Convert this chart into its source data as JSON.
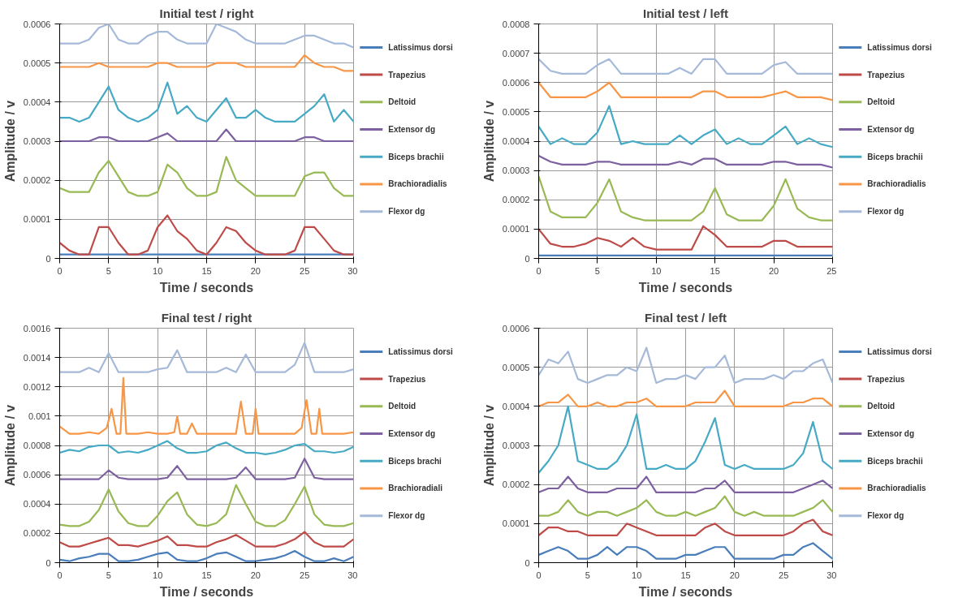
{
  "chart_data": [
    {
      "type": "line",
      "title": "Initial test / right",
      "xlabel": "Time / seconds",
      "ylabel": "Amplitude / v",
      "xlim": [
        0,
        30
      ],
      "xticks": [
        0,
        5,
        10,
        15,
        20,
        25,
        30
      ],
      "ylim": [
        0,
        0.0006
      ],
      "yticks": [
        0,
        0.0001,
        0.0002,
        0.0003,
        0.0004,
        0.0005,
        0.0006
      ],
      "grid": true,
      "legend": "right",
      "marker": "none",
      "line_style": "solid",
      "x": [
        0,
        1,
        2,
        3,
        4,
        5,
        6,
        7,
        8,
        9,
        10,
        11,
        12,
        13,
        14,
        15,
        16,
        17,
        18,
        19,
        20,
        21,
        22,
        23,
        24,
        25,
        26,
        27,
        28,
        29,
        30
      ],
      "series": [
        {
          "name": "Latissimus dorsi",
          "color": "#4a7ebb",
          "values": [
            1e-05,
            1e-05,
            1e-05,
            1e-05,
            1e-05,
            1e-05,
            1e-05,
            1e-05,
            1e-05,
            1e-05,
            1e-05,
            1e-05,
            1e-05,
            1e-05,
            1e-05,
            1e-05,
            1e-05,
            1e-05,
            1e-05,
            1e-05,
            1e-05,
            1e-05,
            1e-05,
            1e-05,
            1e-05,
            1e-05,
            1e-05,
            1e-05,
            1e-05,
            1e-05,
            1e-05
          ]
        },
        {
          "name": "Trapezius",
          "color": "#be4b48",
          "values": [
            4e-05,
            2e-05,
            1e-05,
            1e-05,
            8e-05,
            8e-05,
            4e-05,
            1e-05,
            1e-05,
            2e-05,
            8e-05,
            0.00011,
            7e-05,
            5e-05,
            2e-05,
            1e-05,
            4e-05,
            8e-05,
            7e-05,
            4e-05,
            2e-05,
            1e-05,
            1e-05,
            1e-05,
            2e-05,
            8e-05,
            8e-05,
            5e-05,
            2e-05,
            1e-05,
            1e-05
          ]
        },
        {
          "name": "Deltoid",
          "color": "#98b954",
          "values": [
            0.00018,
            0.00017,
            0.00017,
            0.00017,
            0.00022,
            0.00025,
            0.00021,
            0.00017,
            0.00016,
            0.00016,
            0.00017,
            0.00024,
            0.00022,
            0.00018,
            0.00016,
            0.00016,
            0.00017,
            0.00026,
            0.0002,
            0.00018,
            0.00016,
            0.00016,
            0.00016,
            0.00016,
            0.00016,
            0.00021,
            0.00022,
            0.00022,
            0.00018,
            0.00016,
            0.00016
          ]
        },
        {
          "name": "Extensor dg",
          "color": "#7d60a0",
          "values": [
            0.0003,
            0.0003,
            0.0003,
            0.0003,
            0.00031,
            0.00031,
            0.0003,
            0.0003,
            0.0003,
            0.0003,
            0.00031,
            0.00032,
            0.0003,
            0.0003,
            0.0003,
            0.0003,
            0.0003,
            0.00033,
            0.0003,
            0.0003,
            0.0003,
            0.0003,
            0.0003,
            0.0003,
            0.0003,
            0.00031,
            0.00031,
            0.0003,
            0.0003,
            0.0003,
            0.0003
          ]
        },
        {
          "name": "Biceps brachii",
          "color": "#46aac5",
          "values": [
            0.00036,
            0.00036,
            0.00035,
            0.00036,
            0.0004,
            0.00044,
            0.00038,
            0.00036,
            0.00035,
            0.00036,
            0.00038,
            0.00045,
            0.00037,
            0.00039,
            0.00036,
            0.00035,
            0.00038,
            0.00041,
            0.00036,
            0.00036,
            0.00038,
            0.00036,
            0.00035,
            0.00035,
            0.00035,
            0.00037,
            0.00039,
            0.00042,
            0.00035,
            0.00038,
            0.00035
          ]
        },
        {
          "name": "Brachioradialis",
          "color": "#f79646",
          "values": [
            0.00049,
            0.00049,
            0.00049,
            0.00049,
            0.0005,
            0.00049,
            0.00049,
            0.00049,
            0.00049,
            0.00049,
            0.0005,
            0.0005,
            0.00049,
            0.00049,
            0.00049,
            0.00049,
            0.0005,
            0.0005,
            0.0005,
            0.00049,
            0.00049,
            0.00049,
            0.00049,
            0.00049,
            0.00049,
            0.00052,
            0.0005,
            0.00049,
            0.00049,
            0.00048,
            0.00048
          ]
        },
        {
          "name": "Flexor dg",
          "color": "#a5b9d9",
          "values": [
            0.00055,
            0.00055,
            0.00055,
            0.00056,
            0.00059,
            0.0006,
            0.00056,
            0.00055,
            0.00055,
            0.00057,
            0.00058,
            0.00058,
            0.00056,
            0.00055,
            0.00055,
            0.00055,
            0.0006,
            0.00059,
            0.00058,
            0.00056,
            0.00055,
            0.00055,
            0.00055,
            0.00055,
            0.00056,
            0.00057,
            0.00057,
            0.00056,
            0.00055,
            0.00055,
            0.00054
          ]
        }
      ]
    },
    {
      "type": "line",
      "title": "Initial test / left",
      "xlabel": "Time / seconds",
      "ylabel": "Amplitude / v",
      "xlim": [
        0,
        25
      ],
      "xticks": [
        0,
        5,
        10,
        15,
        20,
        25
      ],
      "ylim": [
        0,
        0.0008
      ],
      "yticks": [
        0,
        0.0001,
        0.0002,
        0.0003,
        0.0004,
        0.0005,
        0.0006,
        0.0007,
        0.0008
      ],
      "grid": true,
      "legend": "right",
      "marker": "none",
      "line_style": "solid",
      "x": [
        0,
        1,
        2,
        3,
        4,
        5,
        6,
        7,
        8,
        9,
        10,
        11,
        12,
        13,
        14,
        15,
        16,
        17,
        18,
        19,
        20,
        21,
        22,
        23,
        24,
        25
      ],
      "series": [
        {
          "name": "Latissimus dorsi",
          "color": "#4a7ebb",
          "values": [
            1e-05,
            1e-05,
            1e-05,
            1e-05,
            1e-05,
            1e-05,
            1e-05,
            1e-05,
            1e-05,
            1e-05,
            1e-05,
            1e-05,
            1e-05,
            1e-05,
            1e-05,
            1e-05,
            1e-05,
            1e-05,
            1e-05,
            1e-05,
            1e-05,
            1e-05,
            1e-05,
            1e-05,
            1e-05,
            1e-05
          ]
        },
        {
          "name": "Trapezius",
          "color": "#be4b48",
          "values": [
            0.0001,
            5e-05,
            4e-05,
            4e-05,
            5e-05,
            7e-05,
            6e-05,
            4e-05,
            7e-05,
            4e-05,
            3e-05,
            3e-05,
            3e-05,
            3e-05,
            0.00011,
            8e-05,
            4e-05,
            4e-05,
            4e-05,
            4e-05,
            6e-05,
            6e-05,
            4e-05,
            4e-05,
            4e-05,
            4e-05
          ]
        },
        {
          "name": "Deltoid",
          "color": "#98b954",
          "values": [
            0.00028,
            0.00016,
            0.00014,
            0.00014,
            0.00014,
            0.00019,
            0.00027,
            0.00016,
            0.00014,
            0.00013,
            0.00013,
            0.00013,
            0.00013,
            0.00013,
            0.00016,
            0.00024,
            0.00015,
            0.00013,
            0.00013,
            0.00013,
            0.00018,
            0.00027,
            0.00017,
            0.00014,
            0.00013,
            0.00013
          ]
        },
        {
          "name": "Extensor dg",
          "color": "#7d60a0",
          "values": [
            0.00035,
            0.00033,
            0.00032,
            0.00032,
            0.00032,
            0.00033,
            0.00033,
            0.00032,
            0.00032,
            0.00032,
            0.00032,
            0.00032,
            0.00033,
            0.00032,
            0.00034,
            0.00034,
            0.00032,
            0.00032,
            0.00032,
            0.00032,
            0.00033,
            0.00033,
            0.00032,
            0.00032,
            0.00032,
            0.00031
          ]
        },
        {
          "name": "Biceps brachii",
          "color": "#46aac5",
          "values": [
            0.00045,
            0.00039,
            0.00041,
            0.00039,
            0.00039,
            0.00043,
            0.00052,
            0.00039,
            0.0004,
            0.00039,
            0.00039,
            0.00039,
            0.00042,
            0.00039,
            0.00042,
            0.00044,
            0.00039,
            0.00041,
            0.00039,
            0.00039,
            0.00042,
            0.00045,
            0.00039,
            0.00041,
            0.00039,
            0.00038
          ]
        },
        {
          "name": "Brachioradialis",
          "color": "#f79646",
          "values": [
            0.0006,
            0.00055,
            0.00055,
            0.00055,
            0.00055,
            0.00057,
            0.0006,
            0.00055,
            0.00055,
            0.00055,
            0.00055,
            0.00055,
            0.00055,
            0.00055,
            0.00057,
            0.00057,
            0.00055,
            0.00055,
            0.00055,
            0.00055,
            0.00056,
            0.00057,
            0.00055,
            0.00055,
            0.00055,
            0.00054
          ]
        },
        {
          "name": "Flexor dg",
          "color": "#a5b9d9",
          "values": [
            0.00068,
            0.00064,
            0.00063,
            0.00063,
            0.00063,
            0.00066,
            0.00068,
            0.00063,
            0.00063,
            0.00063,
            0.00063,
            0.00063,
            0.00065,
            0.00063,
            0.00068,
            0.00068,
            0.00063,
            0.00063,
            0.00063,
            0.00063,
            0.00066,
            0.00067,
            0.00063,
            0.00063,
            0.00063,
            0.00063
          ]
        }
      ]
    },
    {
      "type": "line",
      "title": "Final test / right",
      "xlabel": "Time / seconds",
      "ylabel": "Amplitude / v",
      "xlim": [
        0,
        30
      ],
      "xticks": [
        0,
        5,
        10,
        15,
        20,
        25,
        30
      ],
      "ylim": [
        0,
        0.0016
      ],
      "yticks": [
        0,
        0.0002,
        0.0004,
        0.0006,
        0.0008,
        0.001,
        0.0012,
        0.0014,
        0.0016
      ],
      "grid": true,
      "legend": "right",
      "marker": "none",
      "line_style": "solid",
      "x": [
        0,
        1,
        2,
        3,
        4,
        5,
        6,
        7,
        8,
        9,
        10,
        11,
        12,
        13,
        14,
        15,
        16,
        17,
        18,
        19,
        20,
        21,
        22,
        23,
        24,
        25,
        26,
        27,
        28,
        29,
        30
      ],
      "series": [
        {
          "name": "Latissimus dorsi",
          "color": "#4a7ebb",
          "values": [
            2e-05,
            1e-05,
            3e-05,
            4e-05,
            6e-05,
            6e-05,
            1e-05,
            1e-05,
            2e-05,
            4e-05,
            6e-05,
            7e-05,
            2e-05,
            1e-05,
            1e-05,
            3e-05,
            6e-05,
            7e-05,
            4e-05,
            1e-05,
            1e-05,
            2e-05,
            3e-05,
            5e-05,
            8e-05,
            4e-05,
            1e-05,
            1e-05,
            3e-05,
            1e-05,
            4e-05
          ]
        },
        {
          "name": "Trapezius",
          "color": "#be4b48",
          "values": [
            0.00014,
            0.00011,
            0.00011,
            0.00013,
            0.00015,
            0.00017,
            0.00012,
            0.00012,
            0.00011,
            0.00013,
            0.00015,
            0.00018,
            0.00012,
            0.00012,
            0.00011,
            0.00011,
            0.00014,
            0.00016,
            0.00019,
            0.00015,
            0.00011,
            0.00011,
            0.00011,
            0.00013,
            0.00016,
            0.00021,
            0.00014,
            0.00011,
            0.00011,
            0.00011,
            0.00016
          ]
        },
        {
          "name": "Deltoid",
          "color": "#98b954",
          "values": [
            0.00026,
            0.00025,
            0.00025,
            0.00028,
            0.00036,
            0.0005,
            0.00035,
            0.00027,
            0.00025,
            0.00025,
            0.00032,
            0.00042,
            0.00048,
            0.00033,
            0.00026,
            0.00025,
            0.00027,
            0.00033,
            0.00053,
            0.0004,
            0.00028,
            0.00025,
            0.00025,
            0.00029,
            0.0004,
            0.00052,
            0.00033,
            0.00026,
            0.00025,
            0.00025,
            0.00027
          ]
        },
        {
          "name": "Extensor dg",
          "color": "#7d60a0",
          "values": [
            0.00057,
            0.00057,
            0.00057,
            0.00057,
            0.00057,
            0.00063,
            0.00058,
            0.00057,
            0.00057,
            0.00057,
            0.00057,
            0.00058,
            0.00066,
            0.00057,
            0.00057,
            0.00057,
            0.00057,
            0.00057,
            0.00058,
            0.00065,
            0.00057,
            0.00057,
            0.00057,
            0.00057,
            0.00058,
            0.00071,
            0.00058,
            0.00057,
            0.00057,
            0.00057,
            0.00057
          ]
        },
        {
          "name": "Biceps brachi",
          "color": "#46aac5",
          "values": [
            0.00075,
            0.00077,
            0.00076,
            0.00079,
            0.0008,
            0.0008,
            0.00075,
            0.00076,
            0.00075,
            0.00077,
            0.0008,
            0.00083,
            0.00078,
            0.00075,
            0.00075,
            0.00076,
            0.0008,
            0.00082,
            0.00078,
            0.00075,
            0.00075,
            0.00074,
            0.00075,
            0.00077,
            0.0008,
            0.00081,
            0.00076,
            0.00076,
            0.00075,
            0.00076,
            0.00079
          ]
        },
        {
          "name": "Brachioradiali",
          "color": "#f79646",
          "x": [
            0,
            1,
            2,
            3,
            4,
            4.8,
            5.3,
            5.8,
            6.2,
            6.5,
            6.8,
            7,
            8,
            9,
            10,
            11,
            11.7,
            12,
            12.3,
            13,
            13.5,
            14,
            15,
            16,
            17,
            18,
            18.5,
            19,
            19.7,
            20,
            20.3,
            21,
            22,
            23,
            24,
            24.7,
            25.2,
            25.7,
            26.2,
            26.5,
            26.8,
            27,
            28,
            29,
            30
          ],
          "values": [
            0.00093,
            0.00088,
            0.00088,
            0.00089,
            0.00088,
            0.00092,
            0.00105,
            0.00088,
            0.00088,
            0.00126,
            0.00088,
            0.00088,
            0.00088,
            0.00089,
            0.00088,
            0.00088,
            0.00089,
            0.001,
            0.00088,
            0.00088,
            0.00095,
            0.00088,
            0.00088,
            0.00088,
            0.00088,
            0.00088,
            0.0011,
            0.00088,
            0.00088,
            0.00105,
            0.00088,
            0.00088,
            0.00088,
            0.00088,
            0.00088,
            0.00092,
            0.00111,
            0.00088,
            0.00088,
            0.00105,
            0.00088,
            0.00088,
            0.00088,
            0.00088,
            0.00089
          ]
        },
        {
          "name": "Flexor dg",
          "color": "#a5b9d9",
          "values": [
            0.0013,
            0.0013,
            0.0013,
            0.00133,
            0.0013,
            0.00143,
            0.0013,
            0.0013,
            0.0013,
            0.0013,
            0.00132,
            0.00133,
            0.00145,
            0.0013,
            0.0013,
            0.0013,
            0.0013,
            0.00133,
            0.0013,
            0.00142,
            0.0013,
            0.0013,
            0.0013,
            0.0013,
            0.00135,
            0.0015,
            0.0013,
            0.0013,
            0.0013,
            0.0013,
            0.00132
          ]
        }
      ]
    },
    {
      "type": "line",
      "title": "Final test / left",
      "xlabel": "Time / seconds",
      "ylabel": "Amplitude / v",
      "xlim": [
        0,
        30
      ],
      "xticks": [
        0,
        5,
        10,
        15,
        20,
        25,
        30
      ],
      "ylim": [
        0,
        0.0006
      ],
      "yticks": [
        0,
        0.0001,
        0.0002,
        0.0003,
        0.0004,
        0.0005,
        0.0006
      ],
      "grid": true,
      "legend": "right",
      "marker": "none",
      "line_style": "solid",
      "x": [
        0,
        1,
        2,
        3,
        4,
        5,
        6,
        7,
        8,
        9,
        10,
        11,
        12,
        13,
        14,
        15,
        16,
        17,
        18,
        19,
        20,
        21,
        22,
        23,
        24,
        25,
        26,
        27,
        28,
        29,
        30
      ],
      "series": [
        {
          "name": "Latissimus dorsi",
          "color": "#4a7ebb",
          "values": [
            2e-05,
            3e-05,
            4e-05,
            3e-05,
            1e-05,
            1e-05,
            2e-05,
            4e-05,
            2e-05,
            4e-05,
            4e-05,
            3e-05,
            1e-05,
            1e-05,
            1e-05,
            2e-05,
            2e-05,
            3e-05,
            4e-05,
            4e-05,
            1e-05,
            1e-05,
            1e-05,
            1e-05,
            1e-05,
            2e-05,
            2e-05,
            4e-05,
            5e-05,
            3e-05,
            1e-05
          ]
        },
        {
          "name": "Trapezius",
          "color": "#be4b48",
          "values": [
            7e-05,
            9e-05,
            9e-05,
            8e-05,
            8e-05,
            7e-05,
            7e-05,
            7e-05,
            7e-05,
            0.0001,
            9e-05,
            8e-05,
            7e-05,
            7e-05,
            7e-05,
            7e-05,
            7e-05,
            9e-05,
            0.0001,
            8e-05,
            7e-05,
            7e-05,
            7e-05,
            7e-05,
            7e-05,
            7e-05,
            8e-05,
            0.0001,
            0.00011,
            8e-05,
            7e-05
          ]
        },
        {
          "name": "Deltoid",
          "color": "#98b954",
          "values": [
            0.00012,
            0.00012,
            0.00013,
            0.00016,
            0.00013,
            0.00012,
            0.00013,
            0.00013,
            0.00012,
            0.00013,
            0.00014,
            0.00016,
            0.00013,
            0.00012,
            0.00012,
            0.00013,
            0.00012,
            0.00013,
            0.00014,
            0.00017,
            0.00013,
            0.00012,
            0.00013,
            0.00012,
            0.00012,
            0.00012,
            0.00012,
            0.00013,
            0.00014,
            0.00016,
            0.00013
          ]
        },
        {
          "name": "Extensor dg",
          "color": "#7d60a0",
          "values": [
            0.00018,
            0.00019,
            0.00019,
            0.00022,
            0.00019,
            0.00018,
            0.00018,
            0.00018,
            0.00019,
            0.00019,
            0.00019,
            0.00022,
            0.00018,
            0.00018,
            0.00018,
            0.00018,
            0.00018,
            0.00019,
            0.00019,
            0.00021,
            0.00018,
            0.00018,
            0.00018,
            0.00018,
            0.00018,
            0.00018,
            0.00018,
            0.00019,
            0.0002,
            0.00021,
            0.00019
          ]
        },
        {
          "name": "Biceps brachii",
          "color": "#46aac5",
          "values": [
            0.00023,
            0.00026,
            0.0003,
            0.0004,
            0.00026,
            0.00025,
            0.00024,
            0.00024,
            0.00026,
            0.0003,
            0.00038,
            0.00024,
            0.00024,
            0.00025,
            0.00024,
            0.00024,
            0.00026,
            0.00031,
            0.00037,
            0.00025,
            0.00024,
            0.00025,
            0.00024,
            0.00024,
            0.00024,
            0.00024,
            0.00025,
            0.00028,
            0.00036,
            0.00026,
            0.00024
          ]
        },
        {
          "name": "Brachioradialis",
          "color": "#f79646",
          "values": [
            0.0004,
            0.00041,
            0.00041,
            0.00043,
            0.0004,
            0.0004,
            0.00041,
            0.0004,
            0.0004,
            0.00041,
            0.00041,
            0.00042,
            0.0004,
            0.0004,
            0.0004,
            0.0004,
            0.00041,
            0.00041,
            0.00041,
            0.00044,
            0.0004,
            0.0004,
            0.0004,
            0.0004,
            0.0004,
            0.0004,
            0.00041,
            0.00041,
            0.00042,
            0.00042,
            0.0004
          ]
        },
        {
          "name": "Flexor dg",
          "color": "#a5b9d9",
          "values": [
            0.00048,
            0.00052,
            0.00051,
            0.00054,
            0.00047,
            0.00046,
            0.00047,
            0.00048,
            0.00048,
            0.0005,
            0.00049,
            0.00055,
            0.00046,
            0.00047,
            0.00047,
            0.00048,
            0.00047,
            0.0005,
            0.0005,
            0.00053,
            0.00046,
            0.00047,
            0.00047,
            0.00047,
            0.00048,
            0.00047,
            0.00049,
            0.00049,
            0.00051,
            0.00052,
            0.00046
          ]
        }
      ]
    }
  ]
}
